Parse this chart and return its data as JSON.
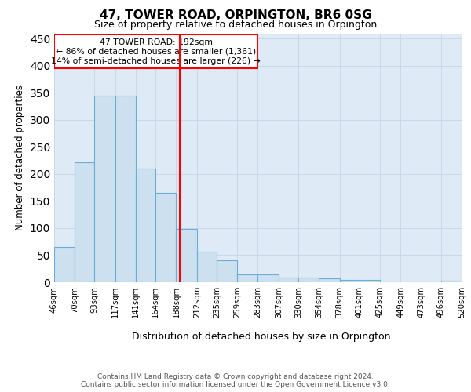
{
  "title": "47, TOWER ROAD, ORPINGTON, BR6 0SG",
  "subtitle": "Size of property relative to detached houses in Orpington",
  "xlabel": "Distribution of detached houses by size in Orpington",
  "ylabel": "Number of detached properties",
  "bin_edges": [
    46,
    70,
    93,
    117,
    141,
    164,
    188,
    212,
    235,
    259,
    283,
    307,
    330,
    354,
    378,
    401,
    425,
    449,
    473,
    496,
    520
  ],
  "bar_heights": [
    65,
    222,
    345,
    345,
    210,
    165,
    98,
    57,
    40,
    15,
    15,
    8,
    8,
    7,
    5,
    4,
    0,
    0,
    0,
    3
  ],
  "bar_color": "#cce0f0",
  "bar_edgecolor": "#6aaed6",
  "vline_x": 192,
  "vline_color": "red",
  "annotation_line1": "47 TOWER ROAD: 192sqm",
  "annotation_line2": "← 86% of detached houses are smaller (1,361)",
  "annotation_line3": "14% of semi-detached houses are larger (226) →",
  "ylim": [
    0,
    460
  ],
  "yticks": [
    0,
    50,
    100,
    150,
    200,
    250,
    300,
    350,
    400,
    450
  ],
  "grid_color": "#c8d8e8",
  "background_color": "#deeaf5",
  "footer_text": "Contains HM Land Registry data © Crown copyright and database right 2024.\nContains public sector information licensed under the Open Government Licence v3.0.",
  "tick_labels": [
    "46sqm",
    "70sqm",
    "93sqm",
    "117sqm",
    "141sqm",
    "164sqm",
    "188sqm",
    "212sqm",
    "235sqm",
    "259sqm",
    "283sqm",
    "307sqm",
    "330sqm",
    "354sqm",
    "378sqm",
    "401sqm",
    "425sqm",
    "449sqm",
    "473sqm",
    "496sqm",
    "520sqm"
  ]
}
